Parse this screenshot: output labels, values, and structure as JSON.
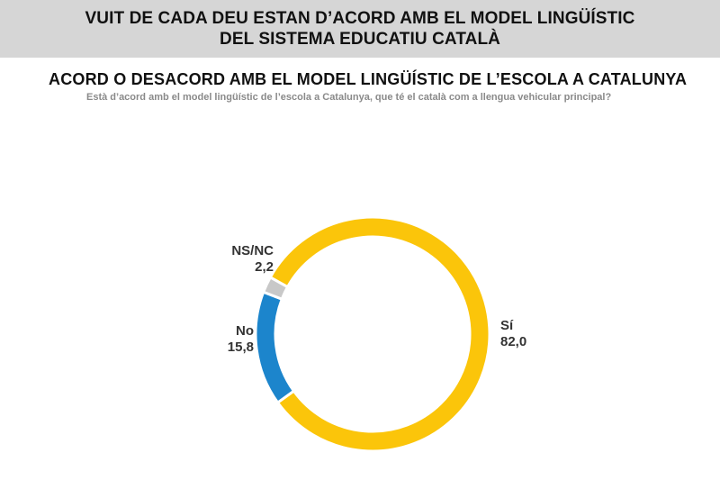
{
  "header": {
    "line1": "VUIT DE CADA DEU ESTAN D’ACORD AMB EL MODEL LINGÜÍSTIC",
    "line2": "DEL SISTEMA EDUCATIU CATALÀ"
  },
  "chart_data": {
    "type": "pie",
    "variant": "donut",
    "title": "ACORD O DESACORD AMB EL MODEL LINGÜÍSTIC DE L’ESCOLA A CATALUNYA",
    "subtitle": "Està d’acord amb el model lingüístic de l’escola a Catalunya, que té el català com a llengua vehicular principal?",
    "slices": [
      {
        "label": "Sí",
        "value": 82.0,
        "display": "82,0",
        "color": "#fbc50a"
      },
      {
        "label": "No",
        "value": 15.8,
        "display": "15,8",
        "color": "#1c85cc"
      },
      {
        "label": "NS/NC",
        "value": 2.2,
        "display": "2,2",
        "color": "#c8c8c8"
      }
    ]
  }
}
